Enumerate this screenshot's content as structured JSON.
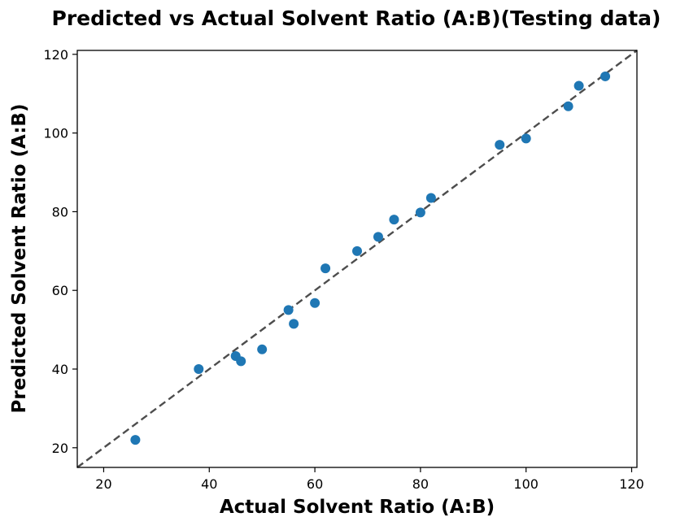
{
  "chart_data": {
    "type": "scatter",
    "title": "Predicted vs Actual Solvent Ratio (A:B)(Testing data)",
    "xlabel": "Actual Solvent Ratio (A:B)",
    "ylabel": "Predicted Solvent Ratio (A:B)",
    "xlim": [
      15,
      121
    ],
    "ylim": [
      15,
      121
    ],
    "xticks": [
      20,
      40,
      60,
      80,
      100,
      120
    ],
    "yticks": [
      20,
      40,
      60,
      80,
      100,
      120
    ],
    "grid": false,
    "reference_line": {
      "style": "dashed",
      "color": "#4d4d4d",
      "from": [
        15,
        15
      ],
      "to": [
        121,
        121
      ]
    },
    "series": [
      {
        "color": "#1f77b4",
        "points": [
          {
            "x": 26,
            "y": 22
          },
          {
            "x": 38,
            "y": 40
          },
          {
            "x": 45,
            "y": 43.3
          },
          {
            "x": 46,
            "y": 42
          },
          {
            "x": 50,
            "y": 45
          },
          {
            "x": 55,
            "y": 55
          },
          {
            "x": 56,
            "y": 51.5
          },
          {
            "x": 60,
            "y": 56.8
          },
          {
            "x": 62,
            "y": 65.6
          },
          {
            "x": 68,
            "y": 70
          },
          {
            "x": 72,
            "y": 73.6
          },
          {
            "x": 75,
            "y": 78
          },
          {
            "x": 80,
            "y": 79.8
          },
          {
            "x": 82,
            "y": 83.5
          },
          {
            "x": 95,
            "y": 97
          },
          {
            "x": 100,
            "y": 98.6
          },
          {
            "x": 108,
            "y": 106.8
          },
          {
            "x": 110,
            "y": 112
          },
          {
            "x": 115,
            "y": 114.4
          }
        ]
      }
    ]
  }
}
